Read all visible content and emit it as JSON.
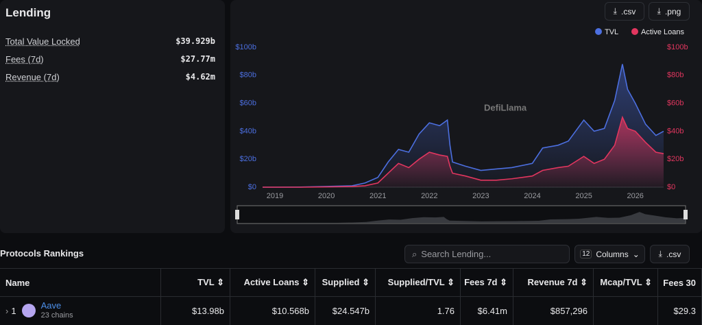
{
  "sidebar": {
    "title": "Lending",
    "metrics": [
      {
        "label": "Total Value Locked",
        "value": "$39.929b"
      },
      {
        "label": "Fees (7d)",
        "value": "$27.77m"
      },
      {
        "label": "Revenue (7d)",
        "value": "$4.62m"
      }
    ]
  },
  "toolbar": {
    "buttons": [
      ".csv",
      ".png"
    ]
  },
  "watermark": "DefiLlama",
  "chart_data": {
    "type": "area",
    "x": [
      2018.76,
      2019,
      2019.5,
      2020,
      2020.5,
      2020.75,
      2021,
      2021.2,
      2021.4,
      2021.6,
      2021.8,
      2022,
      2022.2,
      2022.35,
      2022.4,
      2022.45,
      2022.7,
      2023,
      2023.3,
      2023.6,
      2024,
      2024.2,
      2024.5,
      2024.7,
      2025,
      2025.2,
      2025.4,
      2025.6,
      2025.75,
      2025.85,
      2026,
      2026.2,
      2026.4,
      2026.55
    ],
    "series": [
      {
        "name": "TVL",
        "color": "#4c6fe0",
        "values": [
          0,
          0,
          0.1,
          0.5,
          1,
          3,
          7,
          18,
          27,
          25,
          38,
          46,
          44,
          48,
          30,
          18,
          15,
          12,
          13,
          14,
          17,
          28,
          30,
          33,
          48,
          40,
          42,
          62,
          88,
          70,
          60,
          45,
          37,
          40
        ]
      },
      {
        "name": "Active Loans",
        "color": "#e2365f",
        "axis": "y2",
        "values": [
          0,
          0,
          0,
          0.2,
          0.5,
          1,
          3,
          10,
          17,
          14,
          20,
          25,
          23,
          22,
          15,
          10,
          8,
          5,
          5,
          6,
          8,
          12,
          14,
          15,
          22,
          17,
          20,
          30,
          50,
          42,
          40,
          32,
          25,
          24
        ]
      }
    ],
    "xlim": [
      2018.76,
      2026.55
    ],
    "xticks": [
      2019,
      2020,
      2021,
      2022,
      2023,
      2024,
      2025,
      2026
    ],
    "ylim": [
      0,
      100
    ],
    "yticks": [
      {
        "value": 0,
        "label": "$0"
      },
      {
        "value": 20,
        "label": "$20b"
      },
      {
        "value": 40,
        "label": "$40b"
      },
      {
        "value": 60,
        "label": "$60b"
      },
      {
        "value": 80,
        "label": "$80b"
      },
      {
        "value": 100,
        "label": "$100b"
      }
    ],
    "y2lim": [
      0,
      100
    ],
    "y2ticks": [
      {
        "value": 0,
        "label": "$0"
      },
      {
        "value": 20,
        "label": "$20b"
      },
      {
        "value": 40,
        "label": "$40b"
      },
      {
        "value": 60,
        "label": "$60b"
      },
      {
        "value": 80,
        "label": "$80b"
      },
      {
        "value": 100,
        "label": "$100b"
      }
    ],
    "grid": false,
    "legend": "top-right"
  },
  "rankings": {
    "title": "Protocols Rankings",
    "search_placeholder": "Search Lending...",
    "columns_count": "12",
    "columns_button": "Columns",
    "csv_button": ".csv",
    "table": {
      "headers": [
        "Name",
        "TVL",
        "Active Loans",
        "Supplied",
        "Supplied/TVL",
        "Fees 7d",
        "Revenue 7d",
        "Mcap/TVL",
        "Fees 30"
      ],
      "rows": [
        {
          "rank": "1",
          "name": "Aave",
          "chains": "23 chains",
          "cells": [
            "$13.98b",
            "$10.568b",
            "$24.547b",
            "1.76",
            "$6.41m",
            "$857,296",
            "",
            "$29.3"
          ]
        }
      ]
    }
  }
}
